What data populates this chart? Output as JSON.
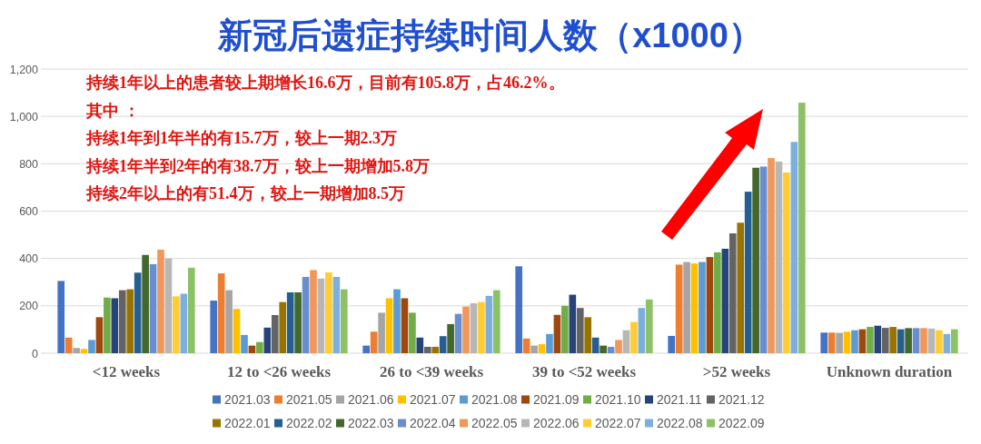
{
  "chart_data": {
    "type": "bar",
    "title": "新冠后遗症持续时间人数（x1000）",
    "categories": [
      "<12 weeks",
      "12 to <26 weeks",
      "26 to <39 weeks",
      "39 to <52 weeks",
      ">52 weeks",
      "Unknown duration"
    ],
    "series": [
      {
        "name": "2021.03",
        "color": "#4472c4",
        "values": [
          305,
          222,
          32,
          367,
          73,
          87
        ]
      },
      {
        "name": "2021.05",
        "color": "#ed7d31",
        "values": [
          66,
          337,
          91,
          62,
          374,
          87
        ]
      },
      {
        "name": "2021.06",
        "color": "#a5a5a5",
        "values": [
          22,
          266,
          171,
          32,
          385,
          86
        ]
      },
      {
        "name": "2021.07",
        "color": "#ffc000",
        "values": [
          18,
          187,
          232,
          38,
          379,
          91
        ]
      },
      {
        "name": "2021.08",
        "color": "#5b9bd5",
        "values": [
          56,
          77,
          270,
          81,
          385,
          97
        ]
      },
      {
        "name": "2021.09",
        "color": "#9e480e",
        "values": [
          152,
          32,
          232,
          162,
          406,
          101
        ]
      },
      {
        "name": "2021.10",
        "color": "#70ad47",
        "values": [
          235,
          47,
          171,
          200,
          426,
          111
        ]
      },
      {
        "name": "2021.11",
        "color": "#264478",
        "values": [
          232,
          108,
          66,
          247,
          441,
          116
        ]
      },
      {
        "name": "2021.12",
        "color": "#636363",
        "values": [
          266,
          161,
          27,
          191,
          506,
          107
        ]
      },
      {
        "name": "2022.01",
        "color": "#997300",
        "values": [
          270,
          216,
          27,
          152,
          551,
          111
        ]
      },
      {
        "name": "2022.02",
        "color": "#255e91",
        "values": [
          340,
          257,
          72,
          66,
          682,
          101
        ]
      },
      {
        "name": "2022.03",
        "color": "#43682b",
        "values": [
          415,
          257,
          123,
          32,
          783,
          106
        ]
      },
      {
        "name": "2022.04",
        "color": "#698ed0",
        "values": [
          376,
          322,
          166,
          27,
          788,
          106
        ]
      },
      {
        "name": "2022.05",
        "color": "#f1975a",
        "values": [
          437,
          351,
          197,
          56,
          824,
          106
        ]
      },
      {
        "name": "2022.06",
        "color": "#b7b7b7",
        "values": [
          400,
          315,
          211,
          97,
          809,
          104
        ]
      },
      {
        "name": "2022.07",
        "color": "#ffcd33",
        "values": [
          240,
          341,
          216,
          132,
          763,
          97
        ]
      },
      {
        "name": "2022.08",
        "color": "#7cafdd",
        "values": [
          251,
          322,
          242,
          191,
          892,
          81
        ]
      },
      {
        "name": "2022.09",
        "color": "#8cc168",
        "values": [
          361,
          270,
          266,
          227,
          1058,
          101
        ]
      }
    ],
    "ylim": [
      0,
      1200
    ],
    "yticks": [
      0,
      200,
      400,
      600,
      800,
      {
        "value": 1000,
        "label": "1,000"
      },
      {
        "value": 1200,
        "label": "1,200"
      }
    ],
    "grid": "y",
    "legend": "bottom",
    "annotations": [
      "持续1年以上的患者较上期增长16.6万，目前有105.8万，占46.2%。",
      "其中 ：",
      "持续1年到1年半的有15.7万，较上一期2.3万",
      "持续1年半到2年的有38.7万，较上一期增加5.8万",
      "持续2年以上的有51.4万，较上一期增加8.5万"
    ]
  }
}
